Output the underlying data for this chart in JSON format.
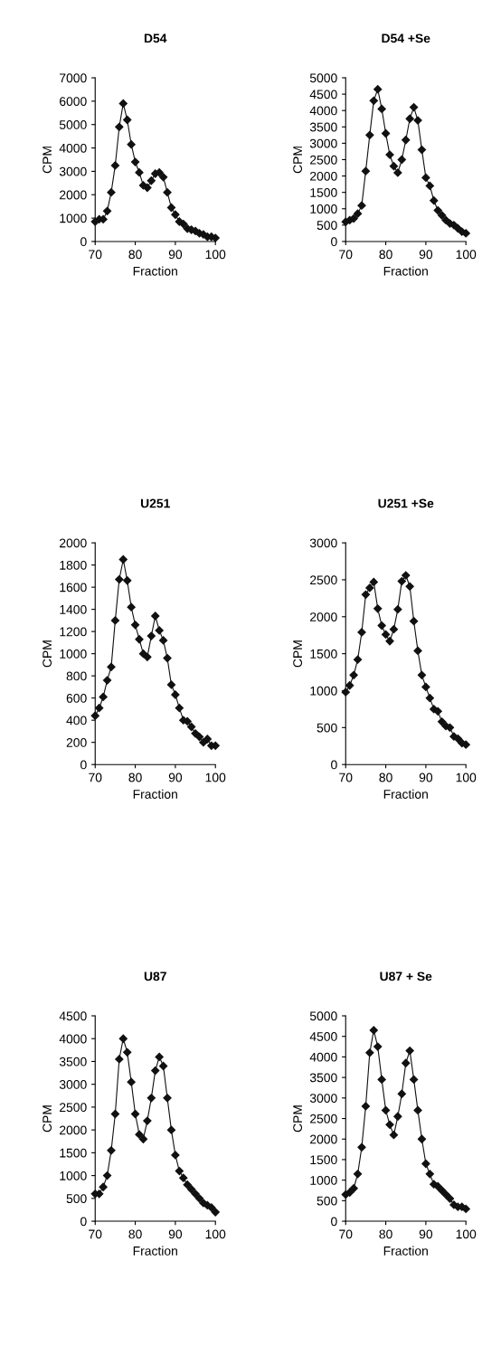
{
  "chart_data": [
    {
      "type": "line",
      "title": "D54",
      "xlabel": "Fraction",
      "ylabel": "CPM",
      "x": [
        70,
        71,
        72,
        73,
        74,
        75,
        76,
        77,
        78,
        79,
        80,
        81,
        82,
        83,
        84,
        85,
        86,
        87,
        88,
        89,
        90,
        91,
        92,
        93,
        94,
        95,
        96,
        97,
        98,
        99,
        100
      ],
      "series": [
        {
          "color": "#111111",
          "values": [
            850,
            950,
            950,
            1300,
            2100,
            3250,
            4900,
            5900,
            5200,
            4150,
            3400,
            2950,
            2400,
            2300,
            2600,
            2900,
            2950,
            2750,
            2100,
            1450,
            1150,
            850,
            750,
            550,
            500,
            450,
            350,
            300,
            200,
            200,
            150
          ]
        }
      ],
      "xlim": [
        70,
        100
      ],
      "xticks": [
        70,
        80,
        90,
        100
      ],
      "ylim": [
        0,
        7000
      ],
      "yticks": [
        0,
        1000,
        2000,
        3000,
        4000,
        5000,
        6000,
        7000
      ],
      "marker": "diamond",
      "grid": false,
      "legend": false
    },
    {
      "type": "line",
      "title": "D54 +Se",
      "xlabel": "Fraction",
      "ylabel": "CPM",
      "x": [
        70,
        71,
        72,
        73,
        74,
        75,
        76,
        77,
        78,
        79,
        80,
        81,
        82,
        83,
        84,
        85,
        86,
        87,
        88,
        89,
        90,
        91,
        92,
        93,
        94,
        95,
        96,
        97,
        98,
        99,
        100
      ],
      "series": [
        {
          "color": "#111111",
          "values": [
            600,
            650,
            700,
            850,
            1100,
            2150,
            3250,
            4300,
            4650,
            4050,
            3300,
            2650,
            2300,
            2100,
            2500,
            3100,
            3750,
            4100,
            3700,
            2800,
            1950,
            1700,
            1250,
            950,
            800,
            650,
            550,
            500,
            400,
            300,
            250
          ]
        }
      ],
      "xlim": [
        70,
        100
      ],
      "xticks": [
        70,
        80,
        90,
        100
      ],
      "ylim": [
        0,
        5000
      ],
      "yticks": [
        0,
        500,
        1000,
        1500,
        2000,
        2500,
        3000,
        3500,
        4000,
        4500,
        5000
      ],
      "marker": "diamond",
      "grid": false,
      "legend": false
    },
    {
      "type": "line",
      "title": "U251",
      "xlabel": "Fraction",
      "ylabel": "CPM",
      "x": [
        70,
        71,
        72,
        73,
        74,
        75,
        76,
        77,
        78,
        79,
        80,
        81,
        82,
        83,
        84,
        85,
        86,
        87,
        88,
        89,
        90,
        91,
        92,
        93,
        94,
        95,
        96,
        97,
        98,
        99,
        100
      ],
      "series": [
        {
          "color": "#111111",
          "values": [
            440,
            510,
            610,
            760,
            880,
            1300,
            1670,
            1850,
            1660,
            1420,
            1260,
            1130,
            1000,
            970,
            1160,
            1340,
            1210,
            1120,
            960,
            720,
            630,
            510,
            400,
            390,
            340,
            280,
            250,
            200,
            230,
            170,
            170
          ]
        }
      ],
      "xlim": [
        70,
        100
      ],
      "xticks": [
        70,
        80,
        90,
        100
      ],
      "ylim": [
        0,
        2000
      ],
      "yticks": [
        0,
        200,
        400,
        600,
        800,
        1000,
        1200,
        1400,
        1600,
        1800,
        2000
      ],
      "marker": "diamond",
      "grid": false,
      "legend": false
    },
    {
      "type": "line",
      "title": "U251 +Se",
      "xlabel": "Fraction",
      "ylabel": "CPM",
      "x": [
        70,
        71,
        72,
        73,
        74,
        75,
        76,
        77,
        78,
        79,
        80,
        81,
        82,
        83,
        84,
        85,
        86,
        87,
        88,
        89,
        90,
        91,
        92,
        93,
        94,
        95,
        96,
        97,
        98,
        99,
        100
      ],
      "series": [
        {
          "color": "#111111",
          "values": [
            980,
            1070,
            1210,
            1420,
            1790,
            2300,
            2390,
            2470,
            2110,
            1880,
            1760,
            1670,
            1830,
            2100,
            2480,
            2560,
            2410,
            1940,
            1540,
            1210,
            1050,
            900,
            750,
            720,
            580,
            520,
            500,
            380,
            350,
            290,
            270
          ]
        }
      ],
      "xlim": [
        70,
        100
      ],
      "xticks": [
        70,
        80,
        90,
        100
      ],
      "ylim": [
        0,
        3000
      ],
      "yticks": [
        0,
        500,
        1000,
        1500,
        2000,
        2500,
        3000
      ],
      "marker": "diamond",
      "grid": false,
      "legend": false
    },
    {
      "type": "line",
      "title": "U87",
      "xlabel": "Fraction",
      "ylabel": "CPM",
      "x": [
        70,
        71,
        72,
        73,
        74,
        75,
        76,
        77,
        78,
        79,
        80,
        81,
        82,
        83,
        84,
        85,
        86,
        87,
        88,
        89,
        90,
        91,
        92,
        93,
        94,
        95,
        96,
        97,
        98,
        99,
        100
      ],
      "series": [
        {
          "color": "#111111",
          "values": [
            600,
            600,
            750,
            1000,
            1550,
            2350,
            3550,
            4000,
            3700,
            3050,
            2350,
            1900,
            1800,
            2200,
            2700,
            3300,
            3600,
            3400,
            2700,
            2000,
            1450,
            1100,
            950,
            800,
            700,
            600,
            500,
            400,
            350,
            300,
            200
          ]
        }
      ],
      "xlim": [
        70,
        100
      ],
      "xticks": [
        70,
        80,
        90,
        100
      ],
      "ylim": [
        0,
        4500
      ],
      "yticks": [
        0,
        500,
        1000,
        1500,
        2000,
        2500,
        3000,
        3500,
        4000,
        4500
      ],
      "marker": "diamond",
      "grid": false,
      "legend": false
    },
    {
      "type": "line",
      "title": "U87 + Se",
      "xlabel": "Fraction",
      "ylabel": "CPM",
      "x": [
        70,
        71,
        72,
        73,
        74,
        75,
        76,
        77,
        78,
        79,
        80,
        81,
        82,
        83,
        84,
        85,
        86,
        87,
        88,
        89,
        90,
        91,
        92,
        93,
        94,
        95,
        96,
        97,
        98,
        99,
        100
      ],
      "series": [
        {
          "color": "#111111",
          "values": [
            650,
            700,
            800,
            1150,
            1800,
            2800,
            4100,
            4650,
            4250,
            3450,
            2700,
            2350,
            2100,
            2550,
            3100,
            3850,
            4150,
            3450,
            2700,
            2000,
            1400,
            1150,
            900,
            850,
            750,
            650,
            550,
            400,
            350,
            350,
            300
          ]
        }
      ],
      "xlim": [
        70,
        100
      ],
      "xticks": [
        70,
        80,
        90,
        100
      ],
      "ylim": [
        0,
        5000
      ],
      "yticks": [
        0,
        500,
        1000,
        1500,
        2000,
        2500,
        3000,
        3500,
        4000,
        4500,
        5000
      ],
      "marker": "diamond",
      "grid": false,
      "legend": false
    }
  ]
}
